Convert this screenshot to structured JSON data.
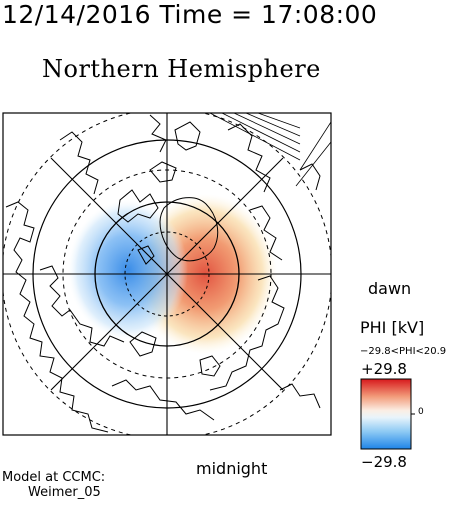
{
  "header": {
    "timestamp": "12/14/2016 Time = 17:08:00",
    "title": "Northern Hemisphere"
  },
  "map": {
    "projection": "polar stereographic, north pole",
    "dawn_label": "dawn",
    "midnight_label": "midnight",
    "colors": {
      "positive": "#e2553c",
      "negative": "#3a8fe8",
      "lines": "#000000"
    }
  },
  "colorbar": {
    "label": "PHI [kV]",
    "range_text": "−29.8<PHI<20.9",
    "max_label": "+29.8",
    "min_label": "−29.8",
    "zero_label": "0",
    "min_value": -29.8,
    "max_value": 29.8
  },
  "model": {
    "line1": "Model at CCMC:",
    "line2": "Weimer_05"
  }
}
